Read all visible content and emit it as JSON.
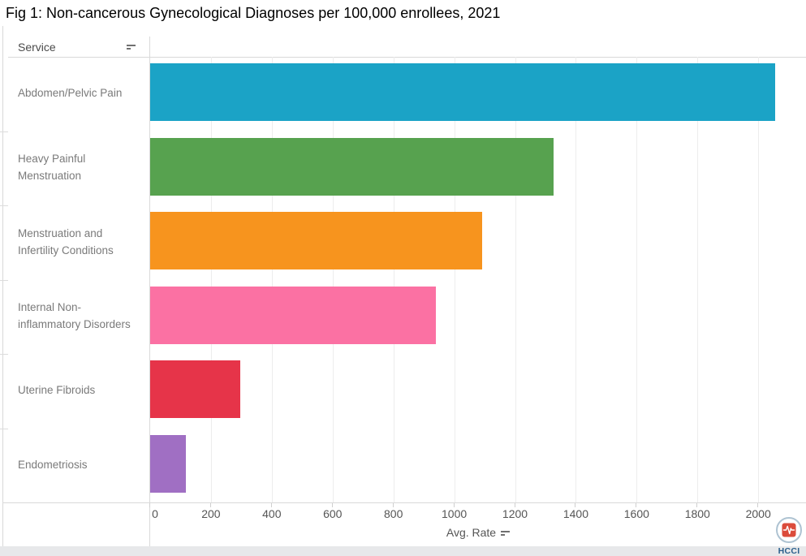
{
  "title": "Fig 1: Non-cancerous Gynecological Diagnoses per 100,000 enrollees, 2021",
  "header": {
    "service_label": "Service",
    "sort_icon": "sort-descending-icon"
  },
  "axis": {
    "title": "Avg. Rate",
    "sort_icon": "sort-descending-icon"
  },
  "chart_data": {
    "type": "bar",
    "orientation": "horizontal",
    "title": "Fig 1: Non-cancerous Gynecological Diagnoses per 100,000 enrollees, 2021",
    "xlabel": "Avg. Rate",
    "ylabel": "Service",
    "categories": [
      "Abdomen/Pelvic Pain",
      "Heavy Painful Menstruation",
      "Menstruation and Infertility Conditions",
      "Internal Non-inflammatory Disorders",
      "Uterine Fibroids",
      "Endometriosis"
    ],
    "values": [
      2055,
      1326,
      1091,
      940,
      297,
      118
    ],
    "colors": [
      "#1BA3C6",
      "#57A24F",
      "#F7941E",
      "#FB71A3",
      "#E63449",
      "#A06FC3"
    ],
    "xlim": [
      0,
      2157
    ],
    "xticks": [
      0,
      200,
      400,
      600,
      800,
      1000,
      1200,
      1400,
      1600,
      1800,
      2000
    ],
    "grid": "vertical-light-gray",
    "legend": "none"
  },
  "logo": {
    "text": "HCCI",
    "icon": "hcci-pulse-icon",
    "icon_color": "#DB4B3B",
    "text_color": "#2A5F8C"
  }
}
